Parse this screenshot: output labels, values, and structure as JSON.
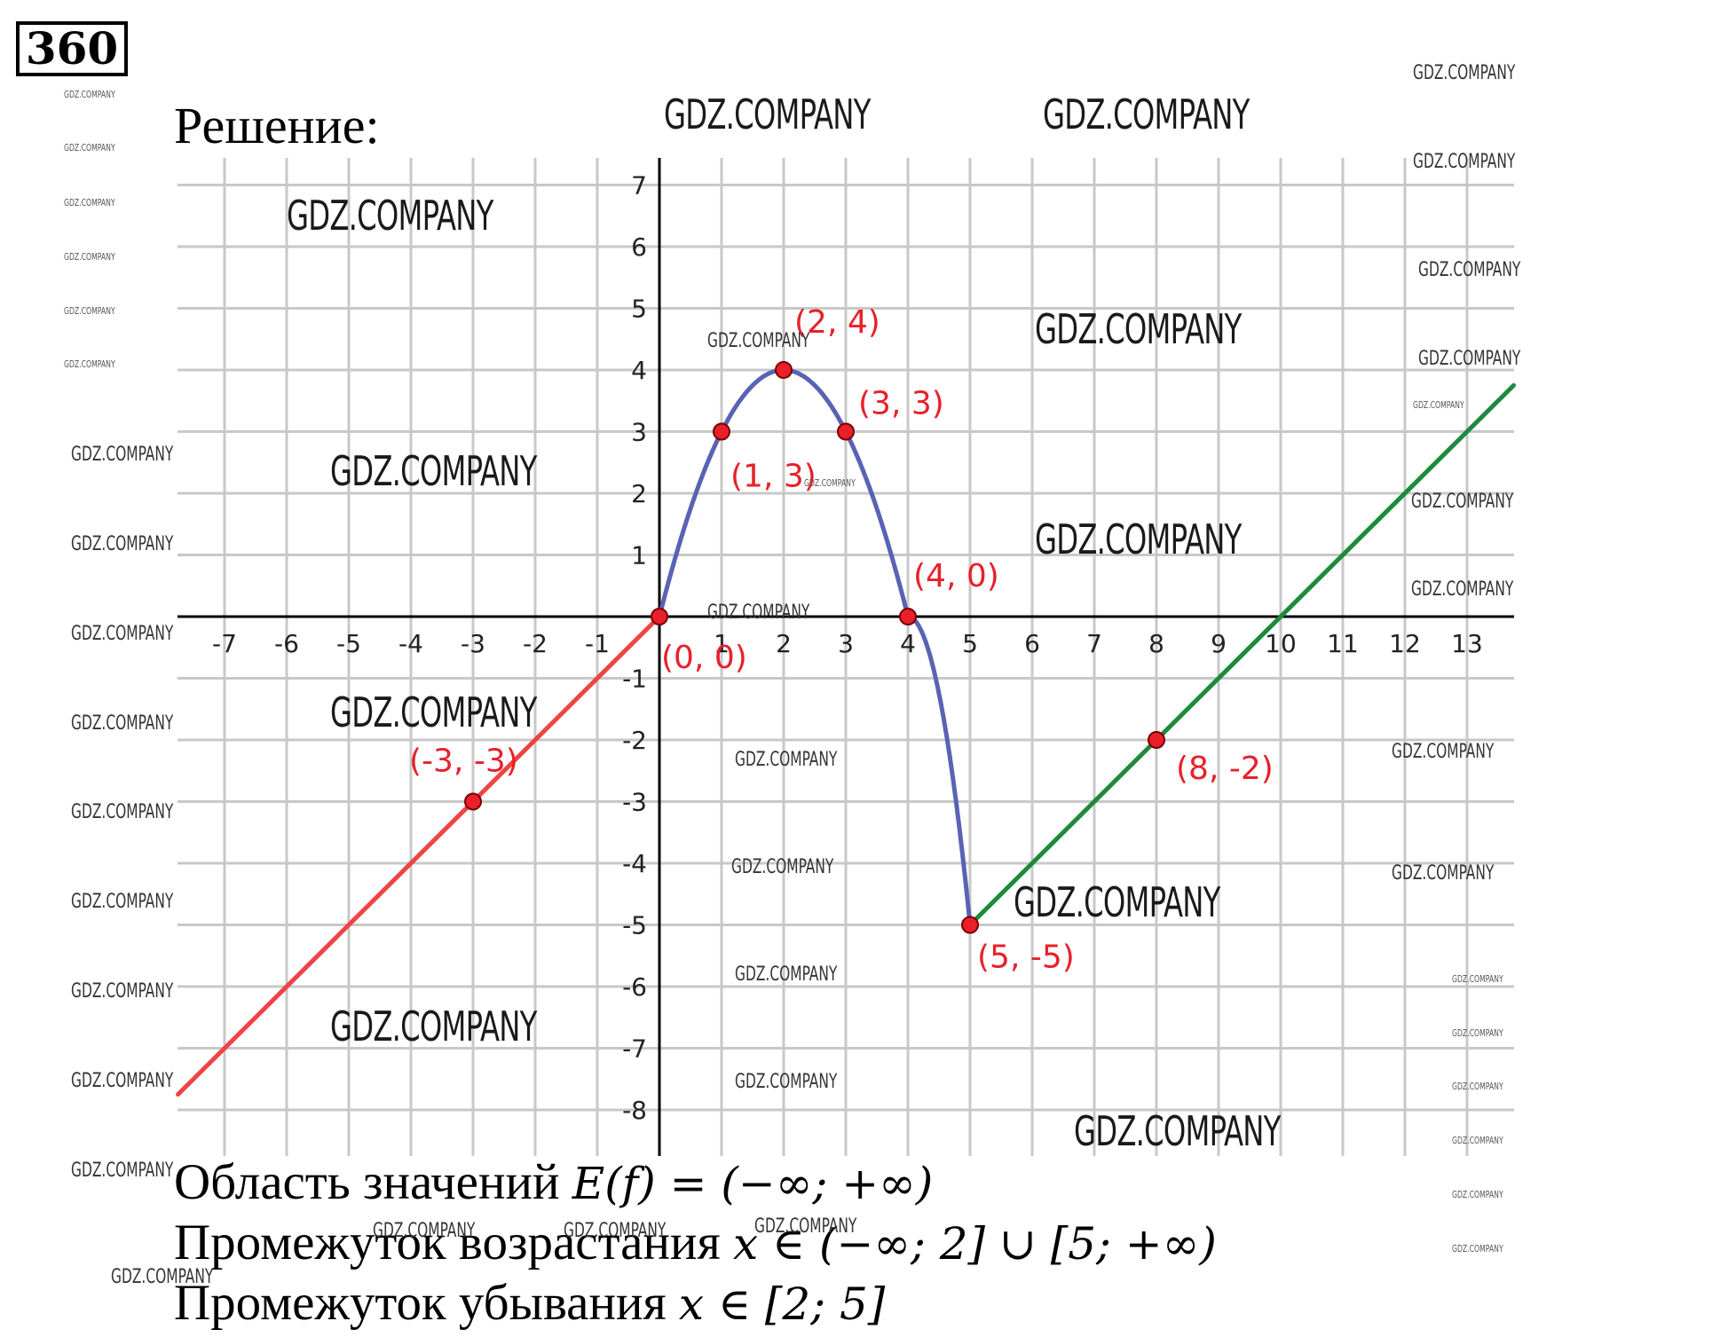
{
  "problem_number": "360",
  "heading": "Решение:",
  "answers": {
    "range_prefix": "Область значений ",
    "range_expr": "E(f) = (−∞; +∞)",
    "increasing_prefix": "Промежуток возрастания ",
    "increasing_expr": "x ∈ (−∞; 2] ∪ [5; +∞)",
    "decreasing_prefix": "Промежуток убывания ",
    "decreasing_expr": "x ∈ [2; 5]"
  },
  "watermark": "GDZ.COMPANY",
  "chart_data": {
    "type": "line",
    "xlim": [
      -7.75,
      13.75
    ],
    "ylim": [
      -8.75,
      7.5
    ],
    "x_ticks": [
      -7,
      -6,
      -5,
      -4,
      -3,
      -2,
      -1,
      1,
      2,
      3,
      4,
      5,
      6,
      7,
      8,
      9,
      10,
      11,
      12,
      13
    ],
    "y_ticks": [
      7,
      6,
      5,
      4,
      3,
      2,
      1,
      -1,
      -2,
      -3,
      -4,
      -5,
      -6,
      -7,
      -8
    ],
    "grid": true,
    "series": [
      {
        "color": "#ee4444",
        "kind": "line",
        "x": [
          -7.75,
          0
        ],
        "y": [
          -7.75,
          0
        ]
      },
      {
        "color": "#5a62b4",
        "kind": "curve",
        "x": [
          0,
          1,
          2,
          3,
          4,
          5
        ],
        "y": [
          0,
          3,
          4,
          3,
          0,
          -5
        ]
      },
      {
        "color": "#1d8a3c",
        "kind": "line",
        "x": [
          5,
          13.75
        ],
        "y": [
          -5,
          3.75
        ]
      }
    ],
    "points": [
      {
        "x": 0,
        "y": 0,
        "label": "(0, 0)"
      },
      {
        "x": 1,
        "y": 3,
        "label": "(1, 3)"
      },
      {
        "x": 2,
        "y": 4,
        "label": "(2, 4)"
      },
      {
        "x": 3,
        "y": 3,
        "label": "(3, 3)"
      },
      {
        "x": 4,
        "y": 0,
        "label": "(4, 0)"
      },
      {
        "x": 5,
        "y": -5,
        "label": "(5, -5)"
      },
      {
        "x": -3,
        "y": -3,
        "label": "(-3, -3)"
      },
      {
        "x": 8,
        "y": -2,
        "label": "(8, -2)"
      }
    ],
    "colors": {
      "point_fill": "#e8202a",
      "label": "#e8202a",
      "grid": "#c8c8c8",
      "axis": "#000000"
    }
  }
}
